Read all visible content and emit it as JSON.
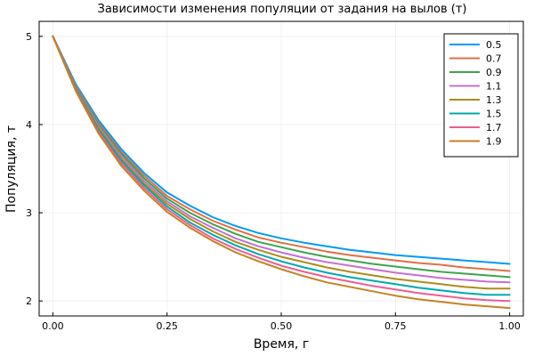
{
  "chart_data": {
    "type": "line",
    "title": "Зависимости изменения популяции от задания на вылов (т)",
    "xlabel": "Время, г",
    "ylabel": "Популяция, т",
    "xlim": [
      -0.03,
      1.03
    ],
    "ylim": [
      1.83,
      5.17
    ],
    "x_ticks": [
      0.0,
      0.25,
      0.5,
      0.75,
      1.0
    ],
    "x_tick_labels": [
      "0.00",
      "0.25",
      "0.50",
      "0.75",
      "1.00"
    ],
    "y_ticks": [
      2,
      3,
      4,
      5
    ],
    "y_tick_labels": [
      "2",
      "3",
      "4",
      "5"
    ],
    "grid": true,
    "legend_position": "top-right",
    "x": [
      0.0,
      0.05,
      0.1,
      0.15,
      0.2,
      0.25,
      0.3,
      0.35,
      0.4,
      0.45,
      0.5,
      0.55,
      0.6,
      0.65,
      0.7,
      0.75,
      0.8,
      0.85,
      0.9,
      0.95,
      1.0
    ],
    "series": [
      {
        "name": "0.5",
        "color": "#009af9",
        "values": [
          5.0,
          4.46,
          4.05,
          3.72,
          3.45,
          3.23,
          3.08,
          2.95,
          2.85,
          2.77,
          2.71,
          2.66,
          2.62,
          2.58,
          2.55,
          2.52,
          2.5,
          2.48,
          2.46,
          2.44,
          2.42
        ]
      },
      {
        "name": "0.7",
        "color": "#e26f46",
        "values": [
          5.0,
          4.44,
          4.02,
          3.69,
          3.42,
          3.19,
          3.04,
          2.91,
          2.81,
          2.72,
          2.66,
          2.61,
          2.56,
          2.52,
          2.49,
          2.46,
          2.43,
          2.41,
          2.38,
          2.36,
          2.34
        ]
      },
      {
        "name": "0.9",
        "color": "#3da44d",
        "values": [
          5.0,
          4.43,
          4.0,
          3.67,
          3.39,
          3.16,
          3.0,
          2.87,
          2.76,
          2.67,
          2.61,
          2.55,
          2.5,
          2.46,
          2.42,
          2.39,
          2.36,
          2.33,
          2.31,
          2.29,
          2.27
        ]
      },
      {
        "name": "1.1",
        "color": "#c271d2",
        "values": [
          5.0,
          4.42,
          3.98,
          3.64,
          3.36,
          3.13,
          2.96,
          2.83,
          2.71,
          2.62,
          2.55,
          2.49,
          2.44,
          2.4,
          2.36,
          2.32,
          2.29,
          2.26,
          2.24,
          2.22,
          2.21
        ]
      },
      {
        "name": "1.3",
        "color": "#ac8d18",
        "values": [
          5.0,
          4.41,
          3.96,
          3.61,
          3.33,
          3.1,
          2.93,
          2.79,
          2.67,
          2.58,
          2.5,
          2.44,
          2.38,
          2.33,
          2.29,
          2.25,
          2.22,
          2.19,
          2.16,
          2.14,
          2.14
        ]
      },
      {
        "name": "1.5",
        "color": "#00a9ad",
        "values": [
          5.0,
          4.4,
          3.94,
          3.59,
          3.31,
          3.07,
          2.89,
          2.75,
          2.63,
          2.53,
          2.45,
          2.38,
          2.32,
          2.27,
          2.23,
          2.19,
          2.15,
          2.12,
          2.09,
          2.07,
          2.07
        ]
      },
      {
        "name": "1.7",
        "color": "#ed5d92",
        "values": [
          5.0,
          4.39,
          3.92,
          3.56,
          3.28,
          3.04,
          2.86,
          2.71,
          2.59,
          2.49,
          2.4,
          2.33,
          2.27,
          2.22,
          2.17,
          2.13,
          2.09,
          2.06,
          2.03,
          2.01,
          2.0
        ]
      },
      {
        "name": "1.9",
        "color": "#c68125",
        "values": [
          5.0,
          4.38,
          3.9,
          3.53,
          3.25,
          3.01,
          2.83,
          2.68,
          2.55,
          2.45,
          2.36,
          2.28,
          2.21,
          2.16,
          2.11,
          2.06,
          2.02,
          1.99,
          1.96,
          1.94,
          1.92
        ]
      }
    ]
  }
}
